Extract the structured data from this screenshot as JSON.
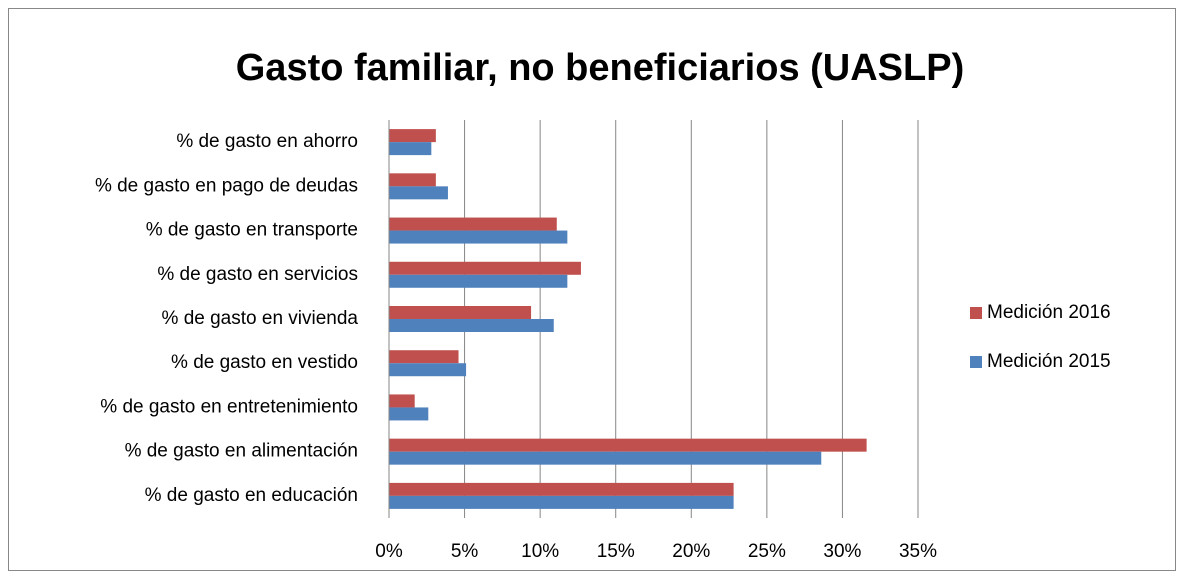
{
  "chart_data": {
    "type": "barh",
    "title": "Gasto familiar, no beneficiarios (UASLP)",
    "categories": [
      "% de gasto en ahorro",
      "% de gasto en pago de deudas",
      "% de gasto en transporte",
      "% de gasto en servicios",
      "% de gasto en vivienda",
      "% de gasto en vestido",
      "% de gasto en entretenimiento",
      "% de gasto en alimentación",
      "% de gasto en educación"
    ],
    "series": [
      {
        "name": "Medición 2016",
        "color": "#c0504d",
        "values": [
          3.1,
          3.1,
          11.1,
          12.7,
          9.4,
          4.6,
          1.7,
          31.6,
          22.8
        ]
      },
      {
        "name": "Medición 2015",
        "color": "#4f81bd",
        "values": [
          2.8,
          3.9,
          11.8,
          11.8,
          10.9,
          5.1,
          2.6,
          28.6,
          22.8
        ]
      }
    ],
    "xlim": [
      0,
      35
    ],
    "xticks": [
      {
        "value": 0,
        "label": "0%"
      },
      {
        "value": 5,
        "label": "5%"
      },
      {
        "value": 10,
        "label": "10%"
      },
      {
        "value": 15,
        "label": "15%"
      },
      {
        "value": 20,
        "label": "20%"
      },
      {
        "value": 25,
        "label": "25%"
      },
      {
        "value": 30,
        "label": "30%"
      },
      {
        "value": 35,
        "label": "35%"
      }
    ],
    "grid": true,
    "legend": "right"
  }
}
